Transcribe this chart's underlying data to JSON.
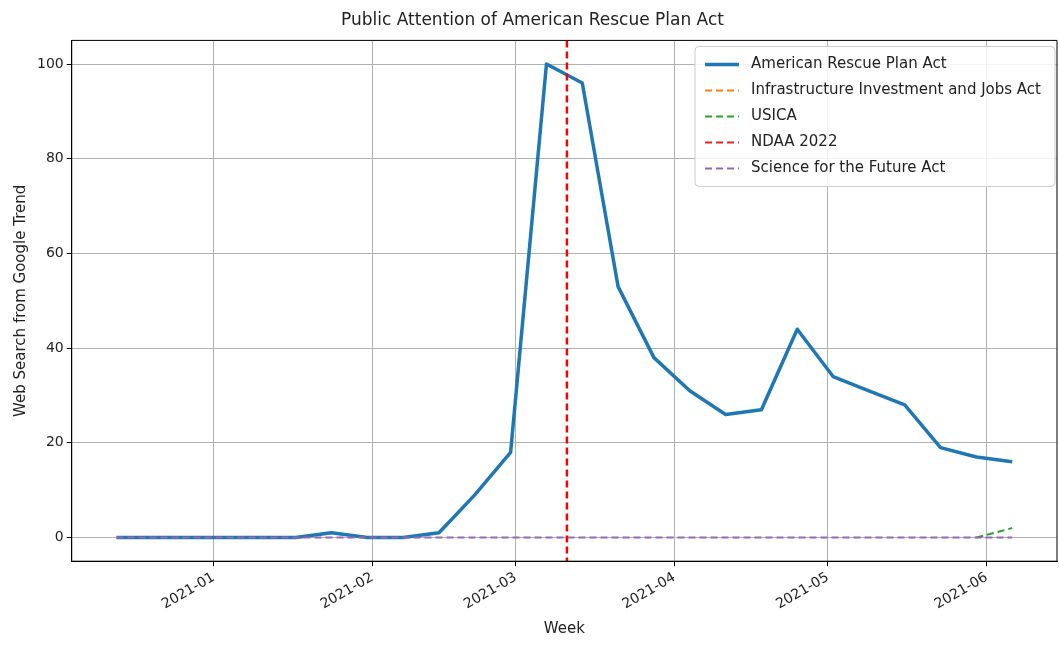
{
  "chart_data": {
    "type": "line",
    "title": "Public Attention of American Rescue Plan Act",
    "xlabel": "Week",
    "ylabel": "Web Search from Google Trend",
    "x": [
      "2020-12-13",
      "2020-12-20",
      "2020-12-27",
      "2021-01-03",
      "2021-01-10",
      "2021-01-17",
      "2021-01-24",
      "2021-01-31",
      "2021-02-07",
      "2021-02-14",
      "2021-02-21",
      "2021-02-28",
      "2021-03-07",
      "2021-03-14",
      "2021-03-21",
      "2021-03-28",
      "2021-04-04",
      "2021-04-11",
      "2021-04-18",
      "2021-04-25",
      "2021-05-02",
      "2021-05-09",
      "2021-05-16",
      "2021-05-23",
      "2021-05-30",
      "2021-06-06"
    ],
    "series": [
      {
        "name": "American Rescue Plan Act",
        "color": "#1f77b4",
        "line_style": "solid",
        "values": [
          0,
          0,
          0,
          0,
          0,
          0,
          1,
          0,
          0,
          1,
          9,
          18,
          100,
          96,
          53,
          38,
          31,
          26,
          27,
          44,
          34,
          31,
          28,
          19,
          17,
          16
        ]
      },
      {
        "name": "Infrastructure Investment and Jobs Act",
        "color": "#ff7f0e",
        "line_style": "dashed",
        "values": [
          null,
          null,
          null,
          null,
          null,
          null,
          null,
          null,
          null,
          null,
          null,
          null,
          null,
          null,
          null,
          null,
          null,
          null,
          null,
          null,
          null,
          null,
          null,
          null,
          null,
          null
        ]
      },
      {
        "name": "USICA",
        "color": "#2ca02c",
        "line_style": "dashed",
        "values": [
          null,
          null,
          null,
          null,
          null,
          null,
          null,
          null,
          null,
          null,
          null,
          null,
          null,
          null,
          null,
          null,
          null,
          null,
          null,
          null,
          null,
          null,
          null,
          null,
          0,
          2
        ]
      },
      {
        "name": "NDAA 2022",
        "color": "#d62728",
        "line_style": "dashed",
        "values": [
          null,
          null,
          null,
          null,
          null,
          null,
          null,
          null,
          null,
          null,
          null,
          null,
          null,
          null,
          null,
          null,
          null,
          null,
          null,
          null,
          null,
          null,
          null,
          null,
          null,
          null
        ]
      },
      {
        "name": "Science for the Future Act",
        "color": "#9467bd",
        "line_style": "dashed",
        "values": [
          0,
          0,
          0,
          0,
          0,
          0,
          0,
          0,
          0,
          0,
          0,
          0,
          0,
          0,
          0,
          0,
          0,
          0,
          0,
          0,
          0,
          0,
          0,
          0,
          0,
          0
        ]
      }
    ],
    "ref_lines": [
      {
        "axis": "x",
        "value": "2021-03-11",
        "color": "#ff0000",
        "line_style": "dashed"
      }
    ],
    "xlim": [
      "2020-12-04T06:00",
      "2021-06-14T18:00"
    ],
    "xticks": [
      {
        "value": "2021-01-01",
        "label": "2021-01"
      },
      {
        "value": "2021-02-01",
        "label": "2021-02"
      },
      {
        "value": "2021-03-01",
        "label": "2021-03"
      },
      {
        "value": "2021-04-01",
        "label": "2021-04"
      },
      {
        "value": "2021-05-01",
        "label": "2021-05"
      },
      {
        "value": "2021-06-01",
        "label": "2021-06"
      }
    ],
    "ylim": [
      -5,
      105
    ],
    "yticks": [
      0,
      20,
      40,
      60,
      80,
      100
    ],
    "grid": true,
    "legend": "top right",
    "marker": "none"
  }
}
